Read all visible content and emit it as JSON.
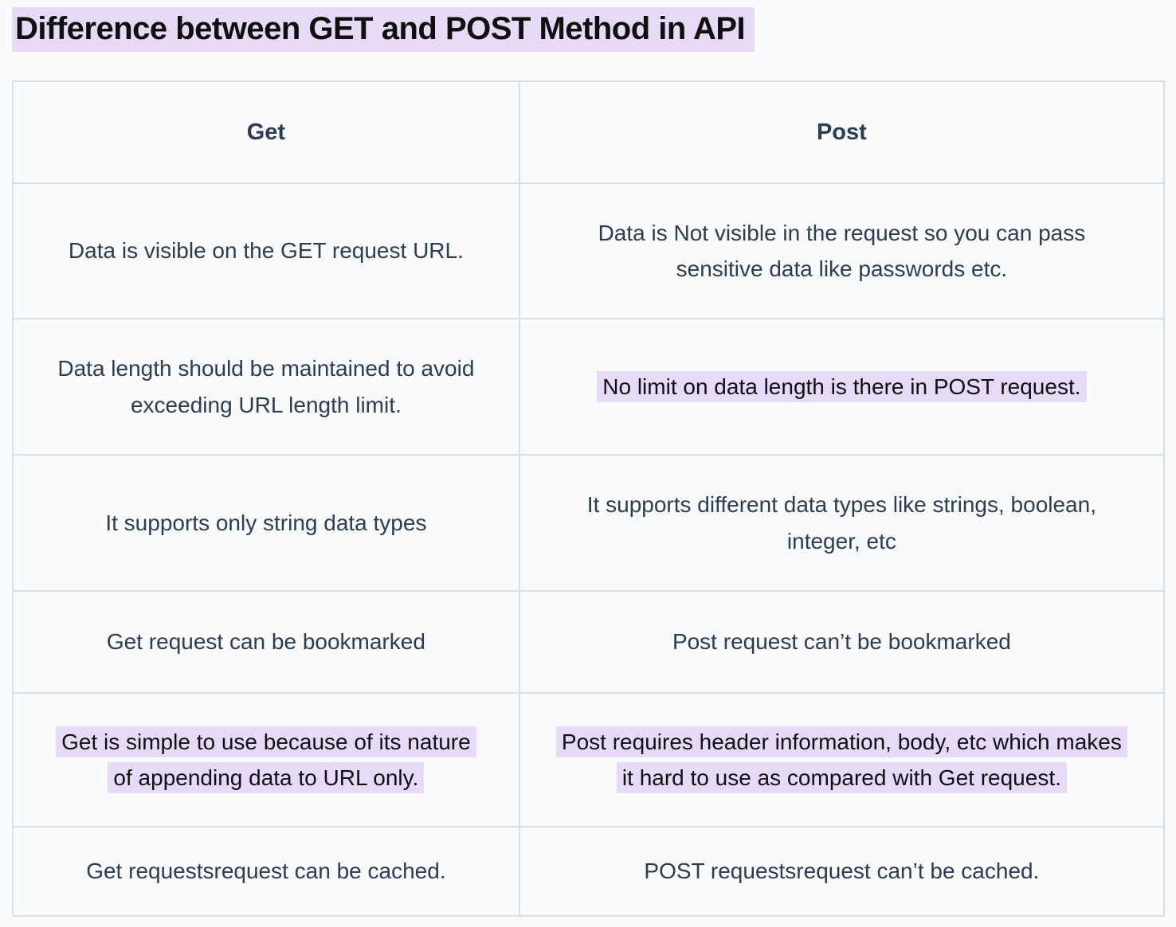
{
  "page": {
    "title": "Difference between GET and POST Method in API",
    "colors": {
      "highlight": "#e7daf6",
      "body_text": "#2d3b53",
      "title_text": "#0f0f10",
      "table_border": "#d9dee3",
      "background": "#f8fafc"
    }
  },
  "table": {
    "columns": [
      {
        "label": "Get"
      },
      {
        "label": "Post"
      }
    ],
    "rows": [
      {
        "get": {
          "text": "Data is visible on the GET request URL.",
          "highlighted": false
        },
        "post": {
          "text": "Data is Not visible in the request so you can pass sensitive data like passwords etc.",
          "highlighted": false
        }
      },
      {
        "get": {
          "text": "Data length should be maintained to avoid exceeding URL length limit.",
          "highlighted": false
        },
        "post": {
          "text": "No limit on data length is there in POST request.",
          "highlighted": true
        }
      },
      {
        "get": {
          "text": "It supports only string data types",
          "highlighted": false
        },
        "post": {
          "text": "It supports different data types like strings, boolean, integer, etc",
          "highlighted": false
        }
      },
      {
        "get": {
          "text": "Get request can be bookmarked",
          "highlighted": false
        },
        "post": {
          "text": "Post request can’t be bookmarked",
          "highlighted": false
        }
      },
      {
        "get": {
          "text": "Get is simple to use because of its nature of appending data to URL only.",
          "highlighted": true
        },
        "post": {
          "text": "Post requires header information, body, etc which makes it hard to use as compared with Get request.",
          "highlighted": true
        }
      },
      {
        "get": {
          "text": "Get requestsrequest can be cached.",
          "highlighted": false
        },
        "post": {
          "text": "POST requestsrequest can’t be cached.",
          "highlighted": false
        }
      }
    ]
  }
}
